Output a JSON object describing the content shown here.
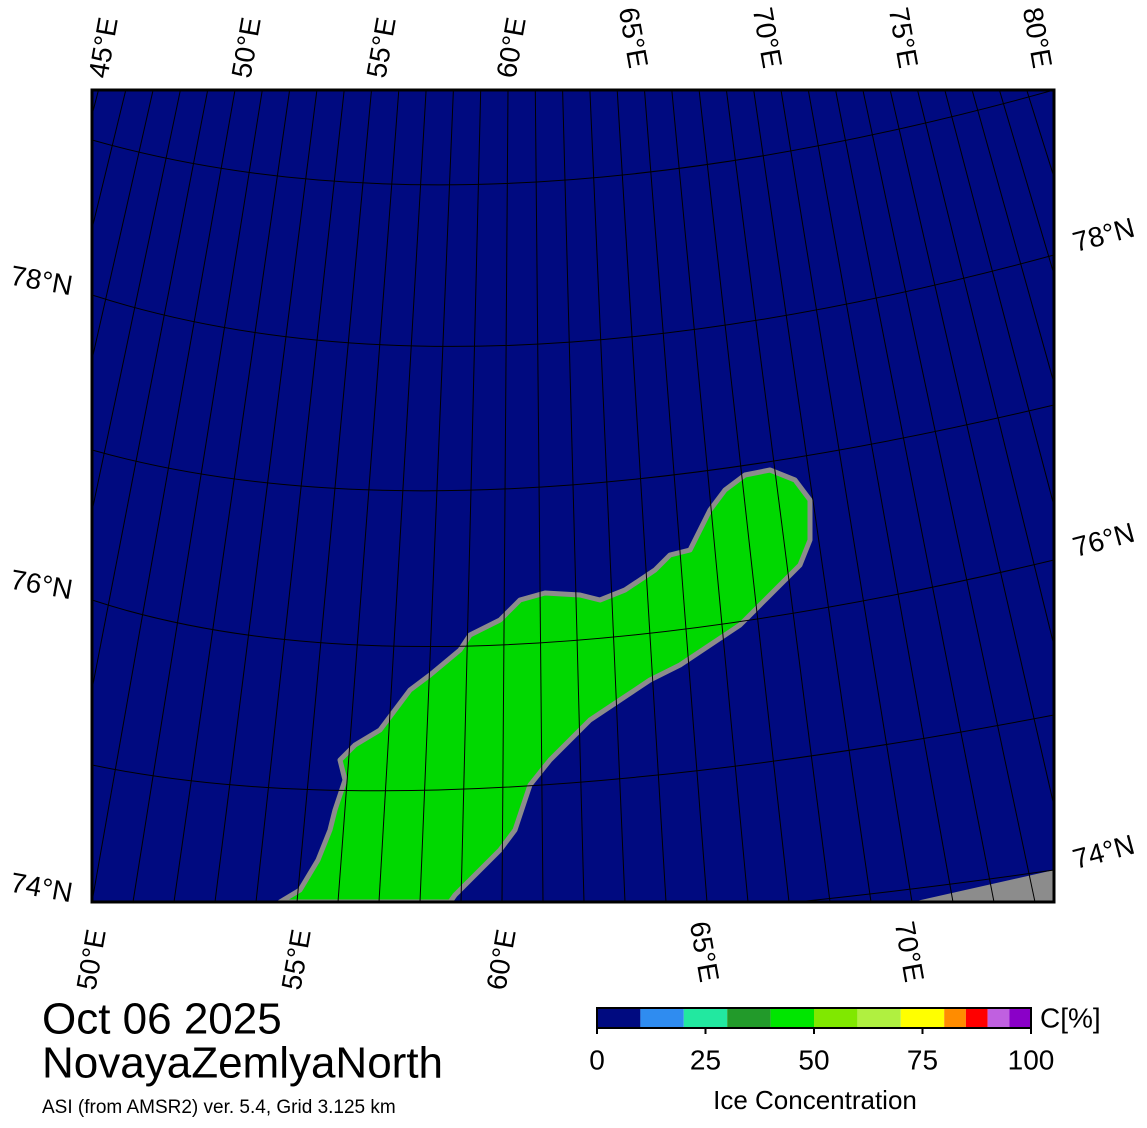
{
  "map": {
    "top_labels": [
      "45°E",
      "50°E",
      "55°E",
      "60°E",
      "65°E",
      "70°E",
      "75°E",
      "80°E"
    ],
    "bottom_labels": [
      "50°E",
      "55°E",
      "60°E",
      "65°E",
      "70°E"
    ],
    "left_labels": [
      "78°N",
      "76°N",
      "74°N"
    ],
    "right_labels": [
      "78°N",
      "76°N",
      "74°N"
    ]
  },
  "date": "Oct 06 2025",
  "region": "NovayaZemlyaNorth",
  "source": "ASI (from AMSR2) ver. 5.4,  Grid 3.125 km",
  "colorbar": {
    "unit": "C[%]",
    "label": "Ice Concentration",
    "lim": [
      0,
      100
    ],
    "ticks": [
      0,
      25,
      50,
      75,
      100
    ],
    "bins": [
      0,
      10,
      20,
      30,
      40,
      50,
      60,
      70,
      80,
      85,
      90,
      95,
      100
    ],
    "colors": [
      "#000a80",
      "#2f8cf0",
      "#22e8a0",
      "#229a2a",
      "#00e600",
      "#80e800",
      "#b0f040",
      "#ffff00",
      "#ff8c00",
      "#ff0000",
      "#c060e0",
      "#8a00c8"
    ]
  }
}
